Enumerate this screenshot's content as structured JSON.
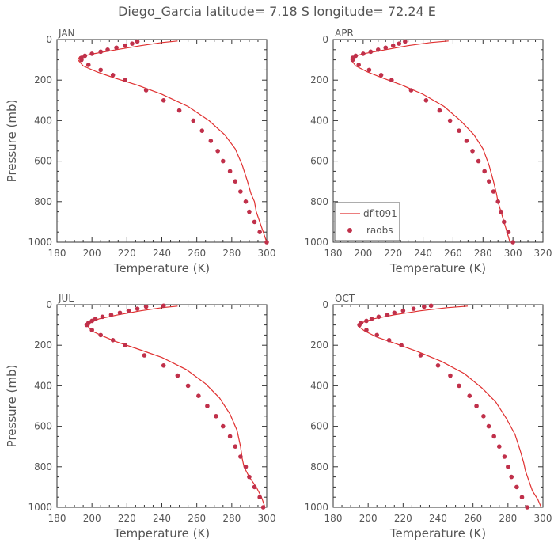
{
  "title": "Diego_Garcia   latitude= 7.18 S longitude= 72.24 E",
  "colors": {
    "model_line": "#e03030",
    "obs_dots": "#c0304a",
    "axis": "#333333",
    "text": "#555555"
  },
  "legend": {
    "line_label": "dflt091",
    "dots_label": "raobs"
  },
  "chart_data": [
    {
      "type": "line",
      "panel": "JAN",
      "xlabel": "Temperature (K)",
      "ylabel": "Pressure (mb)",
      "xlim": [
        180,
        300
      ],
      "ylim": [
        1000,
        0
      ],
      "xticks": [
        180,
        200,
        220,
        240,
        260,
        280,
        300
      ],
      "yticks": [
        0,
        200,
        400,
        600,
        800,
        1000
      ],
      "series": [
        {
          "name": "dflt091",
          "style": "line",
          "points": [
            [
              249,
              7
            ],
            [
              240,
              15
            ],
            [
              228,
              30
            ],
            [
              214,
              50
            ],
            [
              201,
              70
            ],
            [
              193,
              85
            ],
            [
              192,
              100
            ],
            [
              195,
              130
            ],
            [
              203,
              160
            ],
            [
              213,
              190
            ],
            [
              226,
              225
            ],
            [
              240,
              270
            ],
            [
              255,
              330
            ],
            [
              267,
              400
            ],
            [
              276,
              470
            ],
            [
              282,
              540
            ],
            [
              286,
              620
            ],
            [
              289,
              700
            ],
            [
              291,
              760
            ],
            [
              293,
              800
            ],
            [
              294,
              850
            ],
            [
              296,
              900
            ],
            [
              298,
              950
            ],
            [
              300,
              1000
            ]
          ]
        },
        {
          "name": "raobs",
          "style": "scatter",
          "points": [
            [
              226,
              10
            ],
            [
              223,
              20
            ],
            [
              219,
              30
            ],
            [
              214,
              40
            ],
            [
              209,
              50
            ],
            [
              205,
              60
            ],
            [
              200,
              70
            ],
            [
              196,
              80
            ],
            [
              194,
              90
            ],
            [
              194,
              100
            ],
            [
              198,
              125
            ],
            [
              205,
              150
            ],
            [
              212,
              175
            ],
            [
              219,
              200
            ],
            [
              231,
              250
            ],
            [
              241,
              300
            ],
            [
              250,
              350
            ],
            [
              258,
              400
            ],
            [
              263,
              450
            ],
            [
              268,
              500
            ],
            [
              272,
              550
            ],
            [
              275,
              600
            ],
            [
              279,
              650
            ],
            [
              282,
              700
            ],
            [
              285,
              750
            ],
            [
              288,
              800
            ],
            [
              290,
              850
            ],
            [
              293,
              900
            ],
            [
              296,
              950
            ],
            [
              300,
              1000
            ]
          ]
        }
      ]
    },
    {
      "type": "line",
      "panel": "APR",
      "xlabel": "Temperature (K)",
      "ylabel": "",
      "xlim": [
        180,
        320
      ],
      "ylim": [
        1000,
        0
      ],
      "xticks": [
        180,
        200,
        220,
        240,
        260,
        280,
        300,
        320
      ],
      "yticks": [
        0,
        200,
        400,
        600,
        800,
        1000
      ],
      "legend": "bottom-left",
      "series": [
        {
          "name": "dflt091",
          "style": "line",
          "points": [
            [
              257,
              7
            ],
            [
              245,
              15
            ],
            [
              230,
              30
            ],
            [
              215,
              50
            ],
            [
              200,
              70
            ],
            [
              193,
              85
            ],
            [
              192,
              100
            ],
            [
              195,
              130
            ],
            [
              203,
              160
            ],
            [
              213,
              190
            ],
            [
              226,
              225
            ],
            [
              240,
              270
            ],
            [
              254,
              330
            ],
            [
              265,
              400
            ],
            [
              274,
              470
            ],
            [
              280,
              540
            ],
            [
              284,
              620
            ],
            [
              287,
              700
            ],
            [
              289,
              760
            ],
            [
              290,
              800
            ],
            [
              292,
              850
            ],
            [
              294,
              900
            ],
            [
              296,
              950
            ],
            [
              298,
              1000
            ]
          ]
        },
        {
          "name": "raobs",
          "style": "scatter",
          "points": [
            [
              228,
              10
            ],
            [
              224,
              20
            ],
            [
              220,
              30
            ],
            [
              215,
              40
            ],
            [
              210,
              50
            ],
            [
              205,
              60
            ],
            [
              200,
              70
            ],
            [
              195,
              80
            ],
            [
              193,
              90
            ],
            [
              193,
              100
            ],
            [
              197,
              125
            ],
            [
              204,
              150
            ],
            [
              212,
              175
            ],
            [
              219,
              200
            ],
            [
              232,
              250
            ],
            [
              242,
              300
            ],
            [
              251,
              350
            ],
            [
              258,
              400
            ],
            [
              264,
              450
            ],
            [
              269,
              500
            ],
            [
              273,
              550
            ],
            [
              277,
              600
            ],
            [
              281,
              650
            ],
            [
              284,
              700
            ],
            [
              287,
              750
            ],
            [
              290,
              800
            ],
            [
              292,
              850
            ],
            [
              294,
              900
            ],
            [
              297,
              950
            ],
            [
              300,
              1000
            ]
          ]
        }
      ]
    },
    {
      "type": "line",
      "panel": "JUL",
      "xlabel": "Temperature (K)",
      "ylabel": "Pressure (mb)",
      "xlim": [
        180,
        300
      ],
      "ylim": [
        1000,
        0
      ],
      "xticks": [
        180,
        200,
        220,
        240,
        260,
        280,
        300
      ],
      "yticks": [
        0,
        200,
        400,
        600,
        800,
        1000
      ],
      "series": [
        {
          "name": "dflt091",
          "style": "line",
          "points": [
            [
              249,
              7
            ],
            [
              240,
              15
            ],
            [
              228,
              30
            ],
            [
              215,
              50
            ],
            [
              204,
              70
            ],
            [
              199,
              90
            ],
            [
              198,
              110
            ],
            [
              200,
              130
            ],
            [
              205,
              150
            ],
            [
              213,
              180
            ],
            [
              225,
              215
            ],
            [
              240,
              260
            ],
            [
              254,
              320
            ],
            [
              265,
              390
            ],
            [
              273,
              460
            ],
            [
              279,
              540
            ],
            [
              283,
              620
            ],
            [
              285,
              700
            ],
            [
              286,
              760
            ],
            [
              287,
              800
            ],
            [
              290,
              850
            ],
            [
              294,
              900
            ],
            [
              297,
              950
            ],
            [
              299,
              1000
            ]
          ]
        },
        {
          "name": "raobs",
          "style": "scatter",
          "points": [
            [
              241,
              5
            ],
            [
              231,
              10
            ],
            [
              226,
              20
            ],
            [
              221,
              30
            ],
            [
              216,
              40
            ],
            [
              211,
              50
            ],
            [
              206,
              60
            ],
            [
              202,
              70
            ],
            [
              200,
              80
            ],
            [
              198,
              90
            ],
            [
              197,
              100
            ],
            [
              200,
              125
            ],
            [
              205,
              150
            ],
            [
              212,
              175
            ],
            [
              219,
              200
            ],
            [
              230,
              250
            ],
            [
              241,
              300
            ],
            [
              249,
              350
            ],
            [
              255,
              400
            ],
            [
              261,
              450
            ],
            [
              266,
              500
            ],
            [
              271,
              550
            ],
            [
              275,
              600
            ],
            [
              279,
              650
            ],
            [
              282,
              700
            ],
            [
              285,
              750
            ],
            [
              288,
              800
            ],
            [
              290,
              850
            ],
            [
              293,
              900
            ],
            [
              296,
              950
            ],
            [
              298,
              1000
            ]
          ]
        }
      ]
    },
    {
      "type": "line",
      "panel": "OCT",
      "xlabel": "Temperature (K)",
      "ylabel": "",
      "xlim": [
        180,
        300
      ],
      "ylim": [
        1000,
        0
      ],
      "xticks": [
        180,
        200,
        220,
        240,
        260,
        280,
        300
      ],
      "yticks": [
        0,
        200,
        400,
        600,
        800,
        1000
      ],
      "series": [
        {
          "name": "dflt091",
          "style": "line",
          "points": [
            [
              257,
              7
            ],
            [
              245,
              15
            ],
            [
              230,
              30
            ],
            [
              215,
              50
            ],
            [
              203,
              70
            ],
            [
              196,
              90
            ],
            [
              195,
              110
            ],
            [
              198,
              130
            ],
            [
              205,
              160
            ],
            [
              215,
              190
            ],
            [
              228,
              230
            ],
            [
              242,
              280
            ],
            [
              255,
              340
            ],
            [
              265,
              410
            ],
            [
              273,
              480
            ],
            [
              279,
              560
            ],
            [
              284,
              640
            ],
            [
              287,
              720
            ],
            [
              289,
              780
            ],
            [
              290,
              820
            ],
            [
              292,
              870
            ],
            [
              294,
              920
            ],
            [
              297,
              960
            ],
            [
              299,
              1000
            ]
          ]
        },
        {
          "name": "raobs",
          "style": "scatter",
          "points": [
            [
              236,
              5
            ],
            [
              232,
              10
            ],
            [
              226,
              20
            ],
            [
              220,
              30
            ],
            [
              215,
              40
            ],
            [
              211,
              50
            ],
            [
              206,
              60
            ],
            [
              202,
              70
            ],
            [
              199,
              80
            ],
            [
              196,
              90
            ],
            [
              195,
              100
            ],
            [
              199,
              125
            ],
            [
              205,
              150
            ],
            [
              212,
              175
            ],
            [
              219,
              200
            ],
            [
              230,
              250
            ],
            [
              240,
              300
            ],
            [
              247,
              350
            ],
            [
              252,
              400
            ],
            [
              258,
              450
            ],
            [
              262,
              500
            ],
            [
              266,
              550
            ],
            [
              269,
              600
            ],
            [
              272,
              650
            ],
            [
              275,
              700
            ],
            [
              278,
              750
            ],
            [
              280,
              800
            ],
            [
              282,
              850
            ],
            [
              285,
              900
            ],
            [
              288,
              950
            ],
            [
              291,
              1000
            ]
          ]
        }
      ]
    }
  ]
}
